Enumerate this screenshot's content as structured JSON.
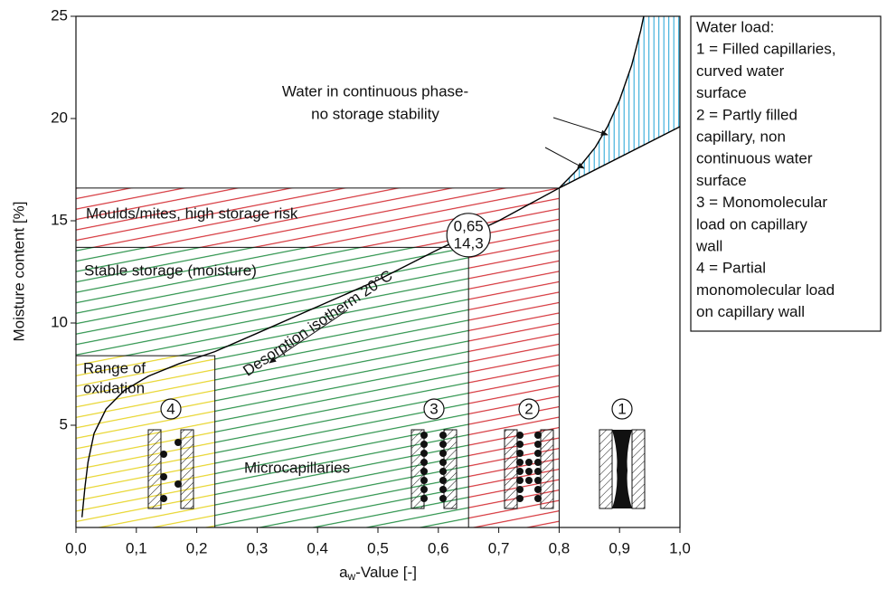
{
  "chart_data": {
    "type": "line",
    "x_label_parts": [
      "a",
      "w",
      "-Value [-]"
    ],
    "y_label": "Moisture content [%]",
    "xlim": [
      0,
      1
    ],
    "ylim": [
      0,
      25
    ],
    "xticks": [
      {
        "value": 0,
        "label": "0,0"
      },
      {
        "value": 0.1,
        "label": "0,1"
      },
      {
        "value": 0.2,
        "label": "0,2"
      },
      {
        "value": 0.3,
        "label": "0,3"
      },
      {
        "value": 0.4,
        "label": "0,4"
      },
      {
        "value": 0.5,
        "label": "0,5"
      },
      {
        "value": 0.6,
        "label": "0,6"
      },
      {
        "value": 0.7,
        "label": "0,7"
      },
      {
        "value": 0.8,
        "label": "0,8"
      },
      {
        "value": 0.9,
        "label": "0,9"
      },
      {
        "value": 1,
        "label": "1,0"
      }
    ],
    "yticks": [
      5,
      10,
      15,
      20,
      25
    ],
    "series": [
      {
        "name": "Desorption isotherm 20°C",
        "color": "#000000",
        "x": [
          0.01,
          0.015,
          0.02,
          0.03,
          0.05,
          0.08,
          0.12,
          0.17,
          0.23,
          0.3,
          0.4,
          0.5,
          0.6,
          0.65,
          0.7,
          0.75,
          0.8,
          0.83,
          0.86,
          0.88,
          0.9,
          0.92,
          0.935,
          0.94
        ],
        "values": [
          0.5,
          2,
          3.2,
          4.6,
          5.8,
          6.7,
          7.4,
          8.0,
          8.6,
          9.5,
          10.8,
          12.1,
          13.6,
          14.3,
          15.0,
          15.8,
          16.6,
          17.5,
          18.6,
          19.6,
          20.9,
          22.6,
          24.3,
          25
        ]
      },
      {
        "color": "#000000",
        "x": [
          0.8,
          1.0
        ],
        "values": [
          16.6,
          19.6
        ]
      }
    ],
    "regions": [
      {
        "label": "Moulds/mites, high storage risk",
        "color": "#d2232a",
        "x": [
          0,
          0.8
        ],
        "y": [
          0,
          16.6
        ]
      },
      {
        "label": "Stable storage (moisture)",
        "color": "#1a8a3c",
        "x": [
          0,
          0.65
        ],
        "y": [
          0,
          13.7
        ]
      },
      {
        "label": [
          "Range of",
          "oxidation"
        ],
        "color": "#e6d21a",
        "x": [
          0,
          0.23
        ],
        "y": [
          0,
          8.4
        ]
      }
    ],
    "continuous_phase_color": "#1fa3d6",
    "point": {
      "x": 0.65,
      "y": 14.3,
      "labels": [
        "0,65",
        "14,3"
      ]
    },
    "annotations": {
      "phase": [
        "Water in continuous phase-",
        "no storage stability"
      ],
      "microcapillaries": "Microcapillaries"
    },
    "capillary_labels": [
      "1",
      "2",
      "3",
      "4"
    ],
    "legend_box": [
      "Water load:",
      "1 = Filled capillaries,",
      "curved water",
      "surface",
      "2 = Partly filled",
      "capillary, non",
      "continuous water",
      "surface",
      "3 = Monomolecular",
      "load on capillary",
      "wall",
      "4 = Partial",
      "monomolecular load",
      "on capillary wall"
    ]
  }
}
